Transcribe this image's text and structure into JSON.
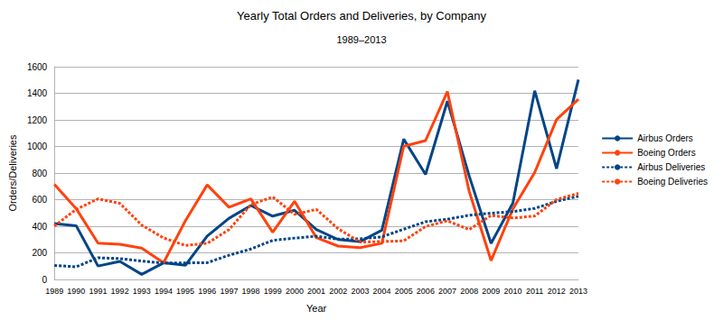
{
  "chart_data": {
    "type": "line",
    "title": "Yearly Total Orders and Deliveries, by Company",
    "subtitle": "1989–2013",
    "x_label": "Year",
    "y_label": "Orders/Deliveries",
    "categories": [
      "1989",
      "1990",
      "1991",
      "1992",
      "1993",
      "1994",
      "1995",
      "1996",
      "1997",
      "1998",
      "1999",
      "2000",
      "2001",
      "2002",
      "2003",
      "2004",
      "2005",
      "2006",
      "2007",
      "2008",
      "2009",
      "2010",
      "2011",
      "2012",
      "2013"
    ],
    "series": [
      {
        "name": "Airbus Orders",
        "color": "#004586",
        "line_style": "solid",
        "marker": "none",
        "values": [
          421,
          404,
          101,
          136,
          38,
          125,
          106,
          326,
          460,
          556,
          476,
          520,
          375,
          300,
          284,
          370,
          1055,
          790,
          1341,
          777,
          271,
          574,
          1419,
          833,
          1503
        ]
      },
      {
        "name": "Boeing Orders",
        "color": "#ff420e",
        "line_style": "solid",
        "marker": "none",
        "values": [
          716,
          533,
          273,
          265,
          236,
          125,
          441,
          711,
          543,
          606,
          355,
          588,
          314,
          251,
          239,
          272,
          1002,
          1044,
          1413,
          662,
          142,
          530,
          805,
          1203,
          1355
        ]
      },
      {
        "name": "Airbus Deliveries",
        "color": "#004586",
        "line_style": "dotted",
        "marker": "none",
        "values": [
          105,
          95,
          163,
          157,
          138,
          123,
          124,
          126,
          182,
          229,
          294,
          311,
          325,
          303,
          305,
          320,
          378,
          434,
          453,
          483,
          498,
          510,
          534,
          588,
          626
        ]
      },
      {
        "name": "Boeing Deliveries",
        "color": "#ff420e",
        "line_style": "dotted",
        "marker": "none",
        "values": [
          402,
          527,
          606,
          572,
          409,
          312,
          256,
          271,
          375,
          563,
          620,
          489,
          527,
          381,
          281,
          285,
          290,
          398,
          441,
          375,
          481,
          462,
          477,
          601,
          648
        ]
      }
    ],
    "ylim": [
      0,
      1600
    ],
    "yticks": [
      0,
      200,
      400,
      600,
      800,
      1000,
      1200,
      1400,
      1600
    ],
    "grid": true,
    "legend": "right"
  }
}
